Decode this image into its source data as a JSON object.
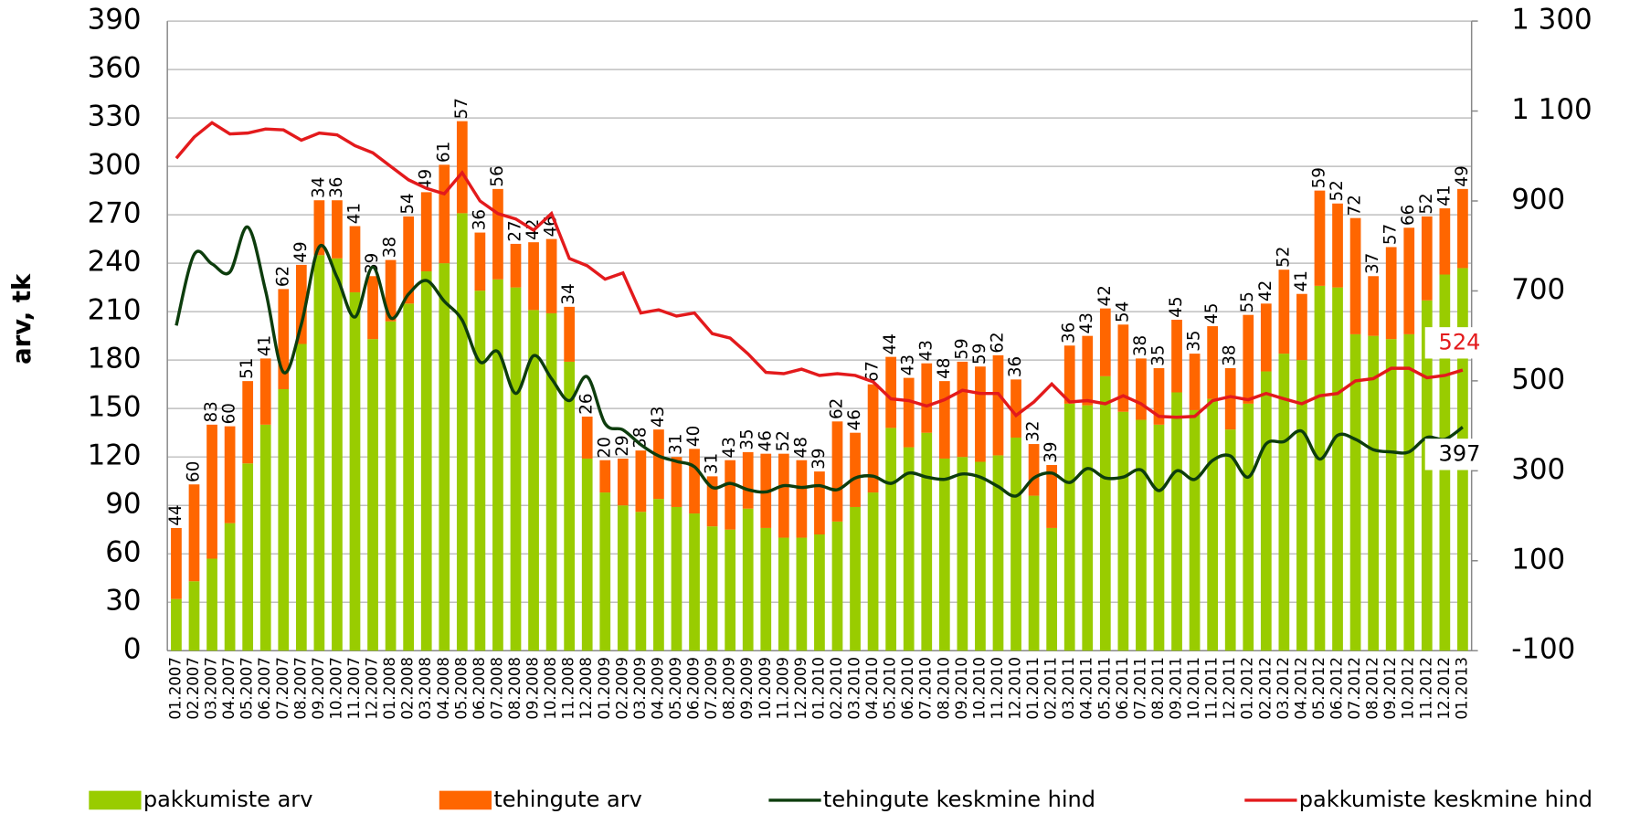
{
  "chart_data": {
    "type": "bar",
    "y_label": "arv, tk",
    "categories": [
      "01.2007",
      "02.2007",
      "03.2007",
      "04.2007",
      "05.2007",
      "06.2007",
      "07.2007",
      "08.2007",
      "09.2007",
      "10.2007",
      "11.2007",
      "12.2007",
      "01.2008",
      "02.2008",
      "03.2008",
      "04.2008",
      "05.2008",
      "06.2008",
      "07.2008",
      "08.2008",
      "09.2008",
      "10.2008",
      "11.2008",
      "12.2008",
      "01.2009",
      "02.2009",
      "03.2009",
      "04.2009",
      "05.2009",
      "06.2009",
      "07.2009",
      "08.2009",
      "09.2009",
      "10.2009",
      "11.2009",
      "12.2009",
      "01.2010",
      "02.2010",
      "03.2010",
      "04.2010",
      "05.2010",
      "06.2010",
      "07.2010",
      "08.2010",
      "09.2010",
      "10.2010",
      "11.2010",
      "12.2010",
      "01.2011",
      "02.2011",
      "03.2011",
      "04.2011",
      "05.2011",
      "06.2011",
      "07.2011",
      "08.2011",
      "09.2011",
      "10.2011",
      "11.2011",
      "12.2011",
      "01.2012",
      "02.2012",
      "03.2012",
      "04.2012",
      "05.2012",
      "06.2012",
      "07.2012",
      "08.2012",
      "09.2012",
      "10.2012",
      "11.2012",
      "12.2012",
      "01.2013"
    ],
    "ylim": [
      0,
      390
    ],
    "yticks": [
      0,
      30,
      60,
      90,
      120,
      150,
      180,
      210,
      240,
      270,
      300,
      330,
      360,
      390
    ],
    "y2lim": [
      -100,
      1300
    ],
    "y2ticks": [
      -100,
      100,
      300,
      500,
      700,
      900,
      {
        "value": 1100,
        "label": "1 100"
      },
      {
        "value": 1300,
        "label": "1 300"
      }
    ],
    "grid": true,
    "legend": "bottom",
    "series": [
      {
        "name": "pakkumiste arv",
        "type": "bar",
        "color": "#99cc00",
        "values": [
          32,
          43,
          57,
          79,
          116,
          140,
          162,
          190,
          245,
          243,
          222,
          193,
          204,
          215,
          235,
          240,
          271,
          223,
          230,
          225,
          211,
          209,
          179,
          119,
          98,
          90,
          86,
          94,
          89,
          85,
          77,
          75,
          88,
          76,
          70,
          70,
          72,
          80,
          89,
          98,
          138,
          126,
          135,
          119,
          120,
          117,
          121,
          132,
          96,
          76,
          153,
          152,
          170,
          148,
          143,
          140,
          160,
          149,
          156,
          137,
          153,
          173,
          184,
          180,
          226,
          225,
          196,
          195,
          193,
          196,
          217,
          233,
          237
        ]
      },
      {
        "name": "tehingute arv",
        "type": "bar",
        "color": "#ff6600",
        "data_labels": true,
        "values": [
          44,
          60,
          83,
          60,
          51,
          41,
          62,
          49,
          34,
          36,
          41,
          39,
          38,
          54,
          49,
          61,
          57,
          36,
          56,
          27,
          42,
          46,
          34,
          26,
          20,
          29,
          38,
          43,
          31,
          40,
          31,
          43,
          35,
          46,
          52,
          48,
          39,
          62,
          46,
          67,
          44,
          43,
          43,
          48,
          59,
          59,
          62,
          36,
          32,
          39,
          36,
          43,
          42,
          54,
          38,
          35,
          45,
          35,
          45,
          38,
          55,
          42,
          52,
          41,
          59,
          52,
          72,
          37,
          57,
          66,
          52,
          41,
          49
        ]
      },
      {
        "name": "tehingute keskmine hind",
        "type": "line",
        "axis": "y2",
        "smooth": true,
        "end_label": "below",
        "color": "#0d3d0d",
        "values": [
          623,
          781,
          760,
          742,
          842,
          700,
          519,
          626,
          798,
          730,
          642,
          753,
          640,
          693,
          723,
          677,
          635,
          542,
          565,
          472,
          556,
          505,
          456,
          509,
          405,
          391,
          358,
          333,
          321,
          309,
          263,
          272,
          258,
          253,
          267,
          263,
          267,
          258,
          284,
          288,
          272,
          295,
          286,
          281,
          293,
          286,
          265,
          244,
          284,
          295,
          274,
          305,
          284,
          286,
          302,
          256,
          300,
          281,
          323,
          333,
          286,
          360,
          365,
          388,
          326,
          379,
          370,
          347,
          342,
          342,
          374,
          370,
          397
        ]
      },
      {
        "name": "pakkumiste keskmine hind",
        "type": "line",
        "axis": "y2",
        "smooth": false,
        "end_label": "above",
        "color": "#e31a1c",
        "values": [
          995,
          1042,
          1074,
          1049,
          1051,
          1060,
          1058,
          1035,
          1051,
          1047,
          1023,
          1007,
          977,
          947,
          928,
          916,
          963,
          900,
          872,
          860,
          835,
          872,
          772,
          756,
          726,
          740,
          651,
          658,
          644,
          651,
          605,
          595,
          560,
          519,
          516,
          526,
          512,
          516,
          512,
          498,
          460,
          456,
          444,
          458,
          479,
          472,
          472,
          423,
          453,
          493,
          453,
          456,
          449,
          467,
          449,
          421,
          419,
          421,
          456,
          465,
          458,
          472,
          460,
          449,
          467,
          472,
          500,
          505,
          528,
          528,
          507,
          512,
          524
        ]
      }
    ]
  }
}
